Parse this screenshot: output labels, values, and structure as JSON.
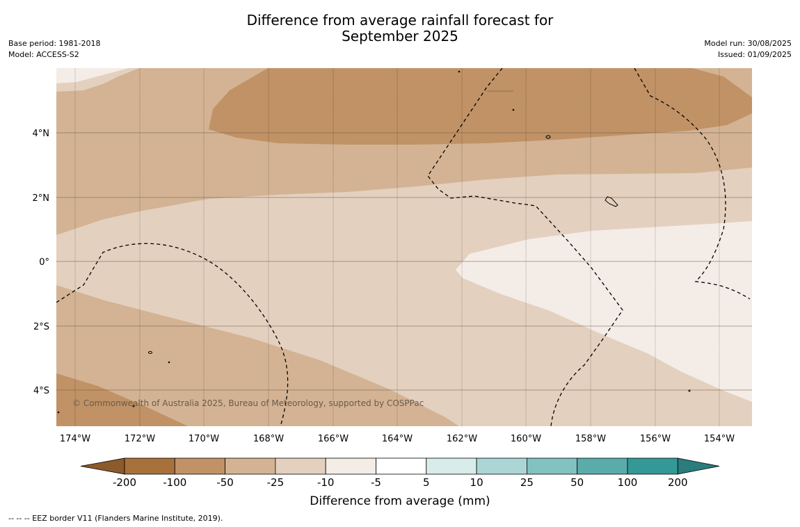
{
  "title_line1": "Difference from average rainfall forecast for",
  "title_line2": "September 2025",
  "base_period": "Base period: 1981-2018",
  "model": "Model: ACCESS-S2",
  "model_run": "Model run: 30/08/2025",
  "issued": "Issued: 01/09/2025",
  "copyright": "© Commonwealth of Australia 2025, Bureau of Meteorology, supported by COSPPac",
  "lon_labels": [
    "174°W",
    "172°W",
    "170°W",
    "168°W",
    "166°W",
    "164°W",
    "162°W",
    "160°W",
    "158°W",
    "156°W",
    "154°W"
  ],
  "lat_labels": [
    "4°N",
    "2°N",
    "0°",
    "2°S",
    "4°S"
  ],
  "colorbar": {
    "ticks": [
      "-200",
      "-100",
      "-50",
      "-25",
      "-10",
      "-5",
      "5",
      "10",
      "25",
      "50",
      "100",
      "200"
    ],
    "colors": [
      "#a8703a",
      "#c09266",
      "#d3b393",
      "#e3d0bf",
      "#f4ece6",
      "#ffffff",
      "#d8ecea",
      "#acd6d6",
      "#82c2c0",
      "#5aacab",
      "#349896"
    ],
    "under_color": "#8d5a2b",
    "over_color": "#2a7d7c",
    "label": "Difference from average (mm)"
  },
  "footer": "--  --  -- EEZ border V11 (Flanders Marine Institute, 2019)."
}
